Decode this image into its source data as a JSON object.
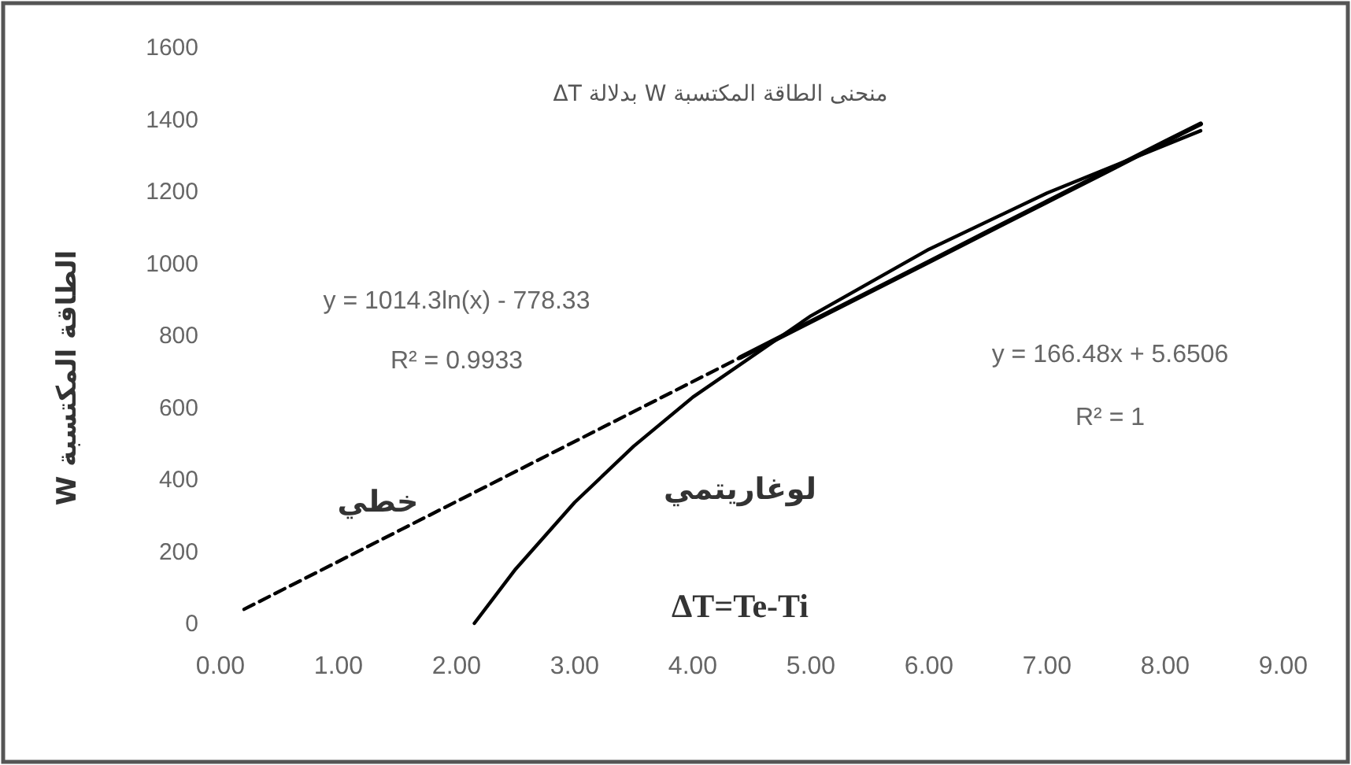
{
  "chart_data": {
    "type": "line",
    "title": "منحنى الطاقة المكتسبة W بدلالة ΔT",
    "xlabel": "ΔT=Te-Ti",
    "ylabel": "الطاقة المكتسبة W",
    "annotations": [
      "y = 1014.3ln(x) - 778.33",
      "R² = 0.9933",
      "y = 166.48x + 5.6506",
      "R² = 1"
    ],
    "xlim": [
      0,
      9
    ],
    "ylim": [
      0,
      1600
    ],
    "xticks": [
      {
        "value": 0,
        "label": "0.00"
      },
      {
        "value": 1,
        "label": "1.00"
      },
      {
        "value": 2,
        "label": "2.00"
      },
      {
        "value": 3,
        "label": "3.00"
      },
      {
        "value": 4,
        "label": "4.00"
      },
      {
        "value": 5,
        "label": "5.00"
      },
      {
        "value": 6,
        "label": "6.00"
      },
      {
        "value": 7,
        "label": "7.00"
      },
      {
        "value": 8,
        "label": "8.00"
      },
      {
        "value": 9,
        "label": "9.00"
      }
    ],
    "yticks": [
      0,
      200,
      400,
      600,
      800,
      1000,
      1200,
      1400,
      1600
    ],
    "series": [
      {
        "color": "#000000",
        "line_style": "solid",
        "x": [
          4.4,
          5,
          5.5,
          6,
          6.5,
          7,
          7.5,
          8,
          8.3
        ],
        "values": [
          738,
          838,
          921,
          1004,
          1088,
          1171,
          1254,
          1338,
          1387
        ]
      },
      {
        "name": "لوغاريتمي",
        "color": "#000000",
        "line_style": "solid",
        "x": [
          2.15,
          2.5,
          3,
          3.5,
          4,
          5,
          6,
          7,
          8.3
        ],
        "values": [
          0,
          151,
          336,
          492,
          628,
          854,
          1039,
          1195,
          1368
        ]
      },
      {
        "name": "خطي",
        "color": "#000000",
        "line_style": "dashed",
        "x": [
          0.2,
          8.3
        ],
        "values": [
          39,
          1387
        ]
      }
    ]
  }
}
